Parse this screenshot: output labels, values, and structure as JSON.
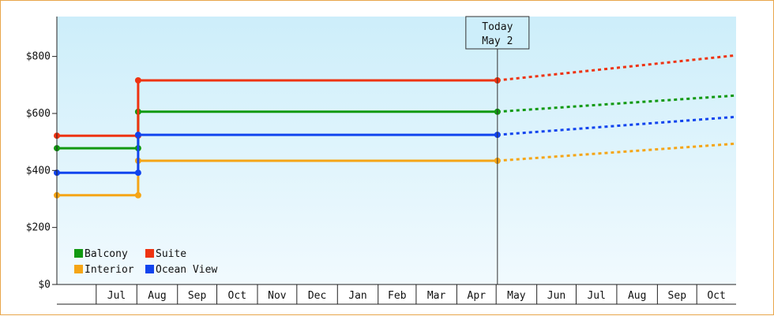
{
  "chart_data": {
    "type": "line",
    "title": "",
    "xlabel": "",
    "ylabel": "",
    "ylim": [
      0,
      940
    ],
    "y_ticks": [
      "$0",
      "$200",
      "$400",
      "$600",
      "$800"
    ],
    "y_tick_values": [
      0,
      200,
      400,
      600,
      800
    ],
    "months": [
      "Jul",
      "Aug",
      "Sep",
      "Oct",
      "Nov",
      "Dec",
      "Jan",
      "Feb",
      "Mar",
      "Apr",
      "May",
      "Jun",
      "Jul",
      "Aug",
      "Sep",
      "Oct"
    ],
    "x_start_date": "2019-06-01",
    "x_end_date": "2020-10-31",
    "grid": false,
    "legend_placement": "bottom-left",
    "today": {
      "line1": "Today",
      "line2": "May 2",
      "date": "2020-05-02"
    },
    "series": [
      {
        "name": "Balcony",
        "color": "#119911",
        "history": [
          {
            "date": "2019-06-01",
            "value": 478
          },
          {
            "date": "2019-08-02",
            "value": 478
          },
          {
            "date": "2019-08-02",
            "value": 606
          },
          {
            "date": "2020-05-02",
            "value": 606
          }
        ],
        "forecast": [
          {
            "date": "2020-05-02",
            "value": 606
          },
          {
            "date": "2020-10-31",
            "value": 663
          }
        ]
      },
      {
        "name": "Suite",
        "color": "#ee3311",
        "history": [
          {
            "date": "2019-06-01",
            "value": 522
          },
          {
            "date": "2019-08-02",
            "value": 522
          },
          {
            "date": "2019-08-02",
            "value": 716
          },
          {
            "date": "2020-05-02",
            "value": 716
          }
        ],
        "forecast": [
          {
            "date": "2020-05-02",
            "value": 716
          },
          {
            "date": "2020-10-31",
            "value": 804
          }
        ]
      },
      {
        "name": "Interior",
        "color": "#f5a516",
        "history": [
          {
            "date": "2019-06-01",
            "value": 313
          },
          {
            "date": "2019-08-02",
            "value": 313
          },
          {
            "date": "2019-08-02",
            "value": 434
          },
          {
            "date": "2020-05-02",
            "value": 434
          }
        ],
        "forecast": [
          {
            "date": "2020-05-02",
            "value": 434
          },
          {
            "date": "2020-10-31",
            "value": 494
          }
        ]
      },
      {
        "name": "Ocean View",
        "color": "#1144ee",
        "history": [
          {
            "date": "2019-06-01",
            "value": 392
          },
          {
            "date": "2019-08-02",
            "value": 392
          },
          {
            "date": "2019-08-02",
            "value": 525
          },
          {
            "date": "2020-05-02",
            "value": 525
          }
        ],
        "forecast": [
          {
            "date": "2020-05-02",
            "value": 525
          },
          {
            "date": "2020-10-31",
            "value": 588
          }
        ]
      }
    ],
    "legend": [
      "Balcony",
      "Suite",
      "Interior",
      "Ocean View"
    ]
  }
}
